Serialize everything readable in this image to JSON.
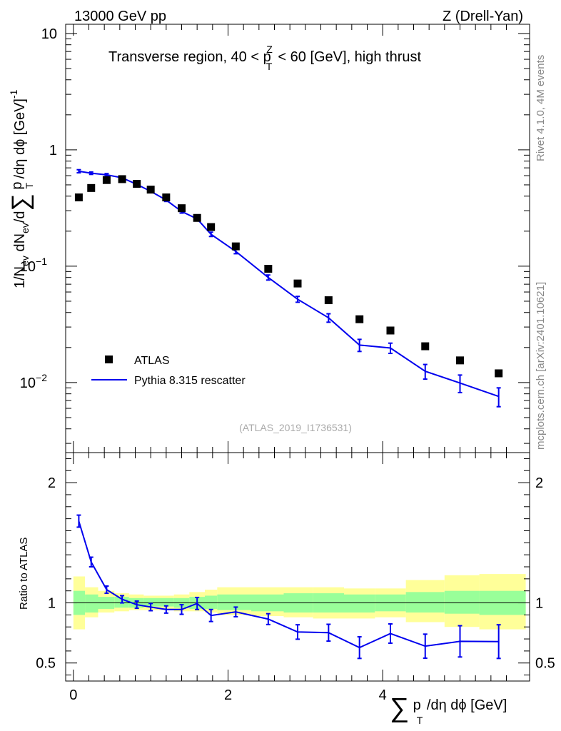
{
  "header": {
    "energy_label": "13000 GeV pp",
    "process_label": "Z (Drell-Yan)",
    "plot_title": "Transverse region, 40 < p",
    "plot_title_sup": "Z",
    "plot_title_sub": "T",
    "plot_title_tail": " < 60 [GeV], high thrust",
    "analysis_id": "(ATLAS_2019_I1736531)",
    "side_label_rivet": "Rivet 4.1.0,  4M events",
    "side_label_mcplots": "mcplots.cern.ch [arXiv:2401.10621]"
  },
  "axes": {
    "main_ylabel": "1/N",
    "main_ylabel_sub": "ev",
    "main_ylabel_mid": " dN",
    "main_ylabel_sub2": "ev",
    "main_ylabel_tail": "/d",
    "main_ylabel_sum": "∑",
    "main_ylabel_p": " p",
    "main_ylabel_p_sub": "T",
    "main_ylabel_end": " /dη dϕ  [GeV]",
    "main_ylabel_sup": "-1",
    "ratio_ylabel": "Ratio to ATLAS",
    "xlabel_sum": "∑",
    "xlabel_p": " p",
    "xlabel_p_sub": "T",
    "xlabel_end": " /dη dϕ [GeV]",
    "main_yticks": [
      "10",
      "1",
      "10",
      "10"
    ],
    "main_yticks_exp": [
      "",
      "",
      "−1",
      "−2"
    ],
    "ratio_yticks": [
      "2",
      "1",
      "0.5"
    ],
    "xticks": [
      "0",
      "2",
      "4"
    ]
  },
  "legend": {
    "data_label": "ATLAS",
    "mc_label": "Pythia 8.315 rescatter"
  },
  "colors": {
    "data": "#000000",
    "mc": "#0000ee",
    "band_inner": "#99ff99",
    "band_outer": "#ffff99"
  },
  "chart_data": [
    {
      "type": "scatter",
      "title": "Transverse region, 40 < pT^Z < 60 [GeV], high thrust",
      "xlabel": "∑ pT /dη dϕ [GeV]",
      "ylabel": "1/Nev dNev/d∑ pT /dη dϕ [GeV]^-1",
      "yscale": "log",
      "xlim": [
        -0.1,
        5.9
      ],
      "ylim": [
        0.0025,
        12
      ],
      "series": [
        {
          "name": "ATLAS",
          "style": "markers",
          "x": [
            0.07,
            0.23,
            0.43,
            0.63,
            0.82,
            1.0,
            1.2,
            1.4,
            1.6,
            1.78,
            2.1,
            2.52,
            2.9,
            3.3,
            3.7,
            4.1,
            4.55,
            5.0,
            5.5
          ],
          "y": [
            0.39,
            0.47,
            0.55,
            0.56,
            0.51,
            0.455,
            0.39,
            0.315,
            0.26,
            0.217,
            0.148,
            0.095,
            0.071,
            0.051,
            0.035,
            0.028,
            0.0205,
            0.0155,
            0.012
          ]
        },
        {
          "name": "Pythia 8.315 rescatter",
          "style": "line",
          "x": [
            0.07,
            0.23,
            0.43,
            0.63,
            0.82,
            1.0,
            1.2,
            1.4,
            1.6,
            1.78,
            2.1,
            2.52,
            2.9,
            3.3,
            3.7,
            4.1,
            4.55,
            5.0,
            5.5
          ],
          "y": [
            0.655,
            0.63,
            0.61,
            0.575,
            0.505,
            0.44,
            0.37,
            0.295,
            0.255,
            0.188,
            0.134,
            0.08,
            0.052,
            0.036,
            0.021,
            0.0198,
            0.0125,
            0.0099,
            0.0076
          ],
          "yerr": [
            0.02,
            0.015,
            0.015,
            0.015,
            0.012,
            0.01,
            0.01,
            0.009,
            0.008,
            0.008,
            0.006,
            0.004,
            0.003,
            0.003,
            0.0025,
            0.002,
            0.0018,
            0.0017,
            0.0014
          ]
        }
      ]
    },
    {
      "type": "line",
      "title": "Ratio to ATLAS",
      "ylabel": "Ratio to ATLAS",
      "xlabel": "∑ pT /dη dϕ [GeV]",
      "xlim": [
        -0.1,
        5.9
      ],
      "ylim": [
        0.35,
        2.25
      ],
      "bin_edges": [
        0.0,
        0.15,
        0.32,
        0.53,
        0.72,
        0.91,
        1.1,
        1.3,
        1.5,
        1.7,
        1.86,
        2.3,
        2.72,
        3.1,
        3.5,
        3.9,
        4.3,
        4.8,
        5.25,
        5.85
      ],
      "band_outer_lo": [
        0.78,
        0.88,
        0.92,
        0.93,
        0.94,
        0.94,
        0.94,
        0.93,
        0.93,
        0.92,
        0.9,
        0.89,
        0.88,
        0.87,
        0.87,
        0.88,
        0.84,
        0.8,
        0.78
      ],
      "band_outer_hi": [
        1.22,
        1.13,
        1.1,
        1.08,
        1.07,
        1.06,
        1.06,
        1.07,
        1.09,
        1.11,
        1.13,
        1.13,
        1.13,
        1.13,
        1.12,
        1.12,
        1.19,
        1.23,
        1.24
      ],
      "band_inner_lo": [
        0.9,
        0.92,
        0.95,
        0.96,
        0.96,
        0.97,
        0.97,
        0.96,
        0.95,
        0.95,
        0.94,
        0.93,
        0.92,
        0.92,
        0.92,
        0.93,
        0.92,
        0.91,
        0.9
      ],
      "band_inner_hi": [
        1.1,
        1.07,
        1.05,
        1.05,
        1.04,
        1.04,
        1.04,
        1.04,
        1.05,
        1.06,
        1.07,
        1.07,
        1.08,
        1.08,
        1.07,
        1.07,
        1.09,
        1.1,
        1.1
      ],
      "reference": 1.0,
      "series": [
        {
          "name": "Pythia 8.315 rescatter",
          "x": [
            0.07,
            0.23,
            0.43,
            0.63,
            0.82,
            1.0,
            1.2,
            1.4,
            1.6,
            1.78,
            2.1,
            2.52,
            2.9,
            3.3,
            3.7,
            4.1,
            4.55,
            5.0,
            5.5
          ],
          "y": [
            1.68,
            1.34,
            1.11,
            1.03,
            0.985,
            0.965,
            0.945,
            0.945,
            0.995,
            0.895,
            0.925,
            0.865,
            0.758,
            0.752,
            0.628,
            0.745,
            0.64,
            0.68,
            0.678
          ],
          "yerr": [
            0.05,
            0.04,
            0.03,
            0.03,
            0.03,
            0.03,
            0.03,
            0.04,
            0.05,
            0.05,
            0.04,
            0.045,
            0.06,
            0.07,
            0.09,
            0.08,
            0.1,
            0.13,
            0.14
          ]
        }
      ]
    }
  ]
}
